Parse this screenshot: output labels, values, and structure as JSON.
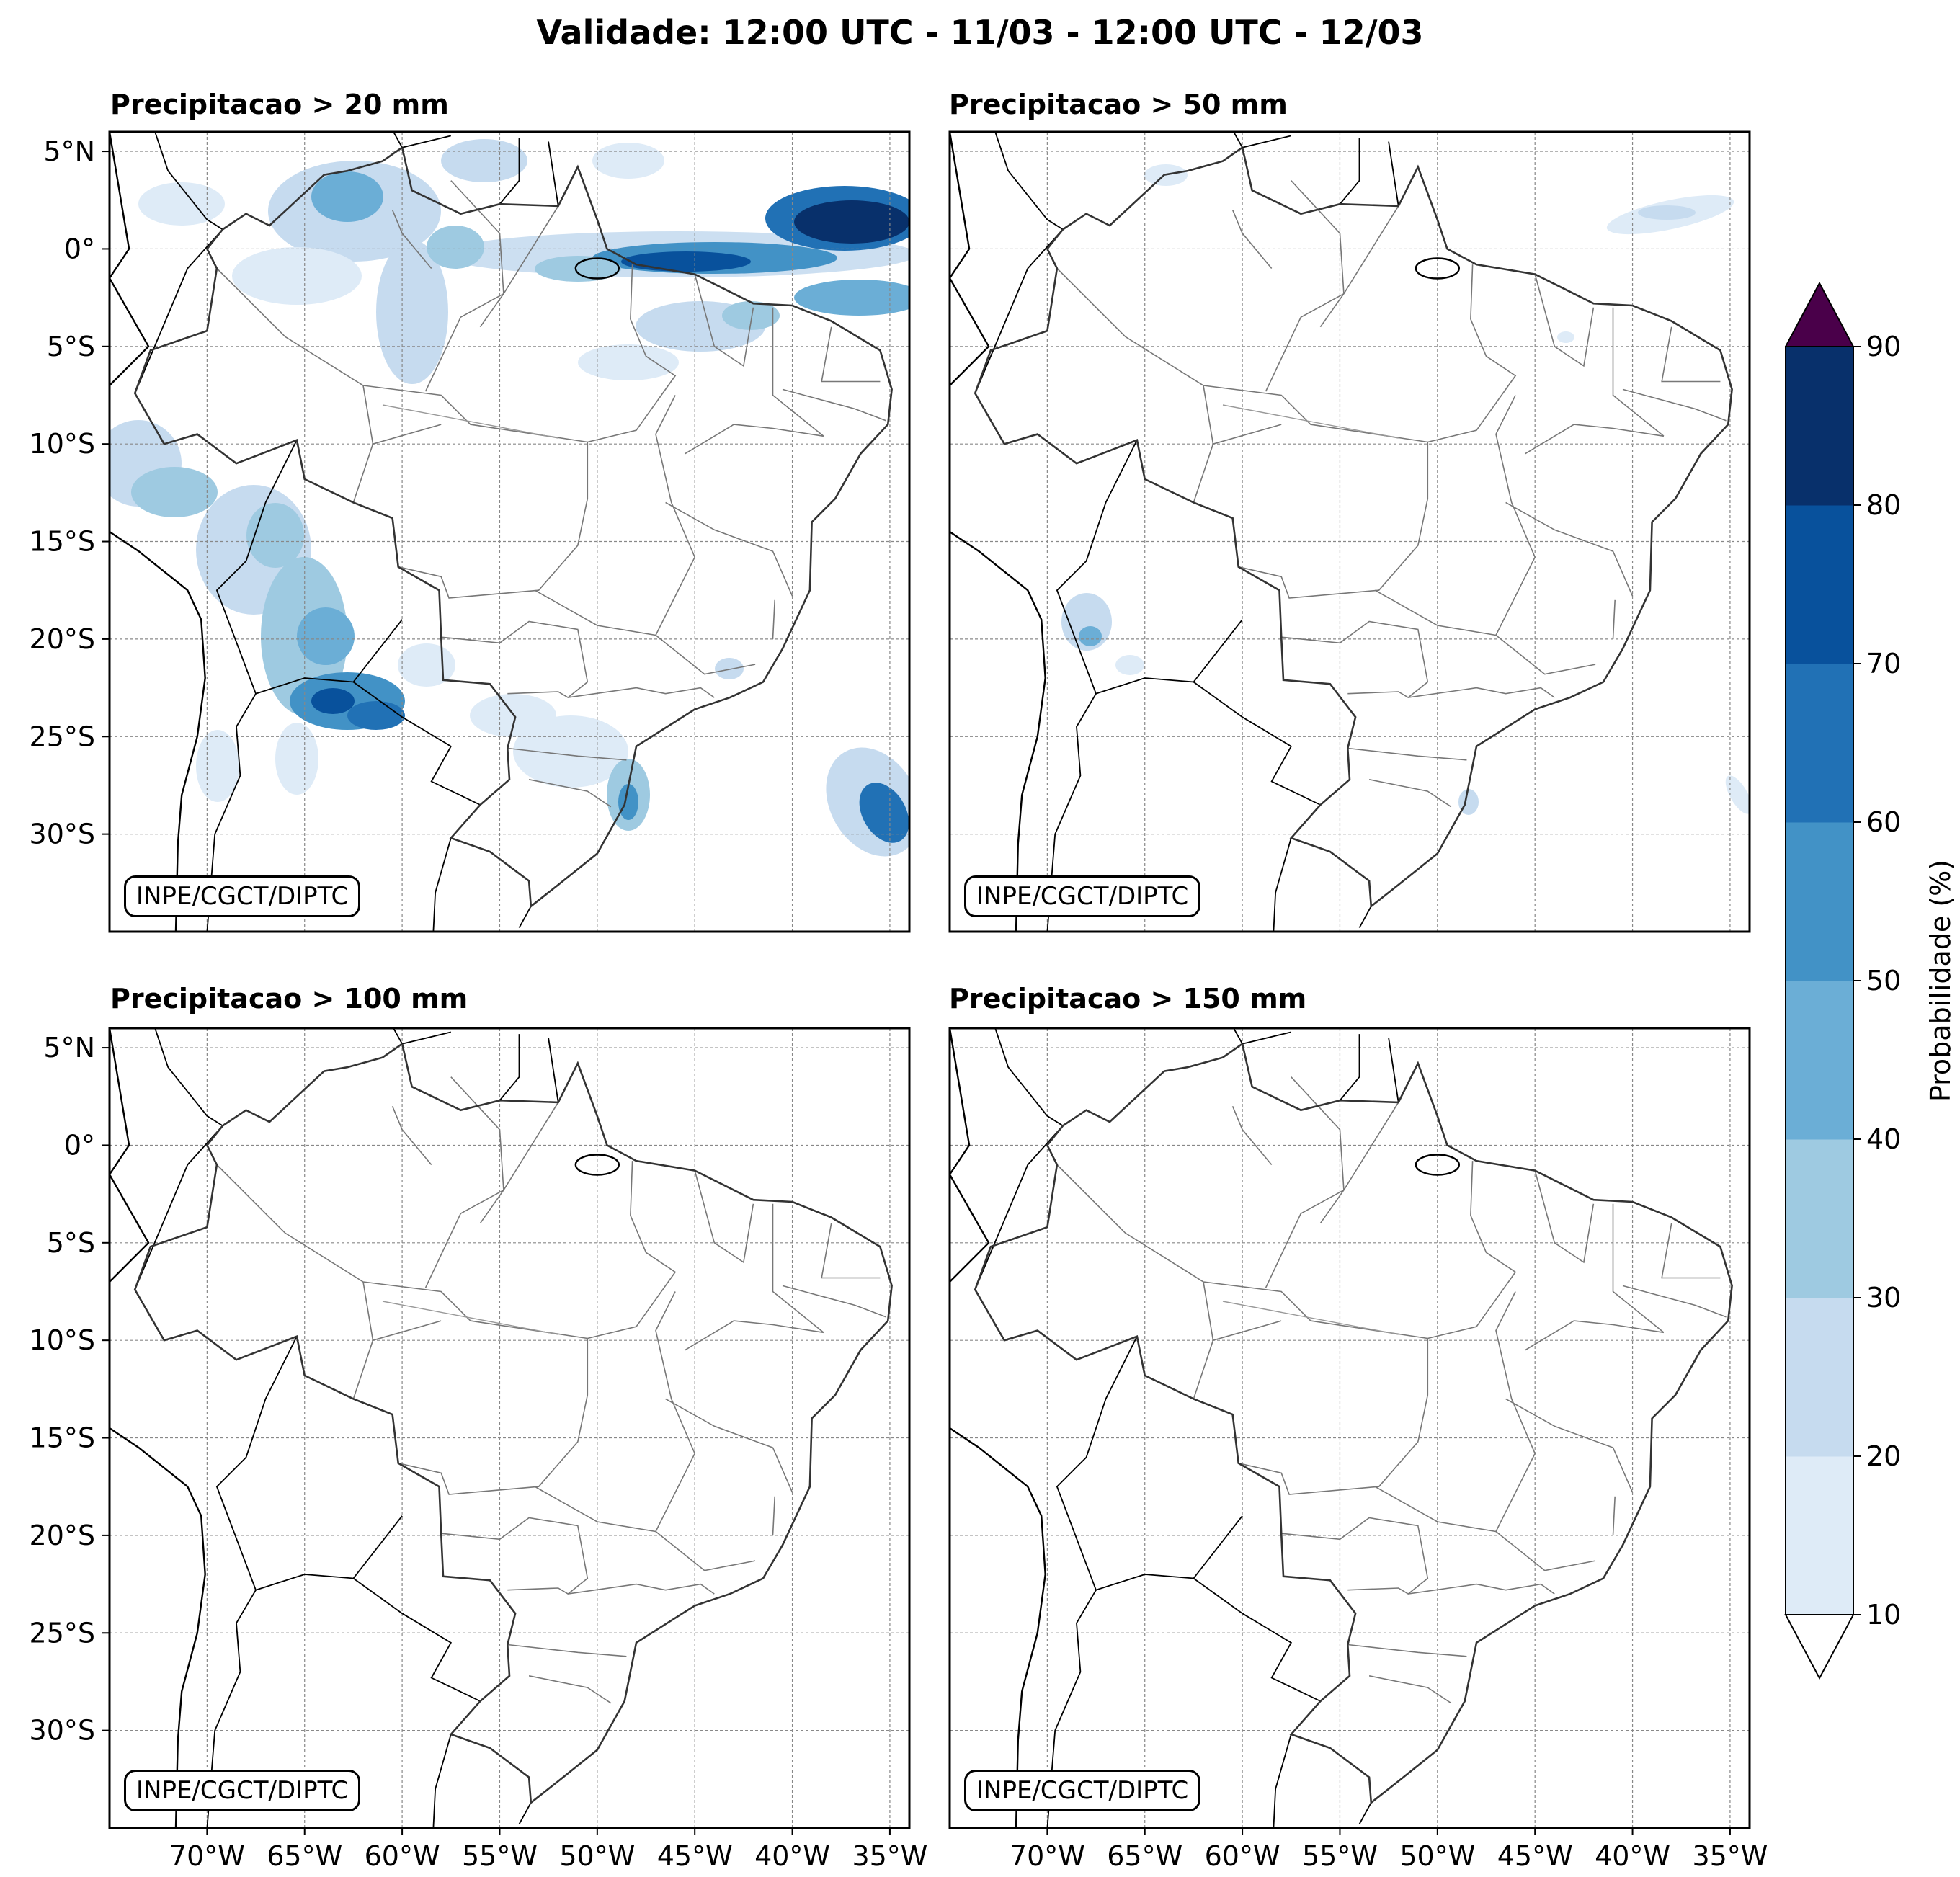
{
  "title": "Validade: 12:00 UTC - 11/03 - 12:00 UTC - 12/03",
  "credit": "INPE/CGCT/DIPTC",
  "panels": [
    {
      "title": "Precipitacao > 20 mm",
      "threshold_mm": 20
    },
    {
      "title": "Precipitacao > 50 mm",
      "threshold_mm": 50
    },
    {
      "title": "Precipitacao > 100 mm",
      "threshold_mm": 100
    },
    {
      "title": "Precipitacao > 150 mm",
      "threshold_mm": 150
    }
  ],
  "map": {
    "lon_ticks": [
      "70°W",
      "65°W",
      "60°W",
      "55°W",
      "50°W",
      "45°W",
      "40°W",
      "35°W"
    ],
    "lat_ticks": [
      "5°N",
      "0°",
      "5°S",
      "10°S",
      "15°S",
      "20°S",
      "25°S",
      "30°S"
    ],
    "lon_range": [
      -75,
      -34
    ],
    "lat_range": [
      -35,
      6
    ]
  },
  "colorbar": {
    "label": "Probabilidade (%)",
    "ticks": [
      "10",
      "20",
      "30",
      "40",
      "50",
      "60",
      "70",
      "80",
      "90"
    ],
    "colors": [
      "#deebf7",
      "#c6dbef",
      "#9ecae1",
      "#6baed6",
      "#4292c6",
      "#2171b5",
      "#08519c",
      "#08306b"
    ],
    "over_color": "#4a004a",
    "under_color": "#ffffff"
  }
}
